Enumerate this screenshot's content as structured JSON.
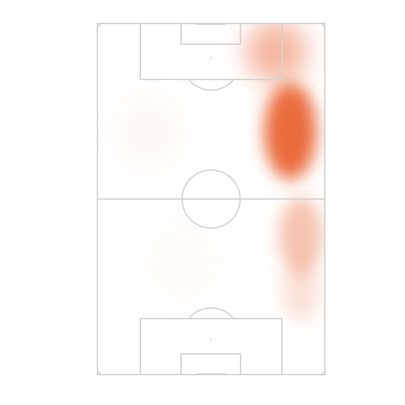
{
  "pitch": {
    "line_color": "#d3d3d3",
    "background": "#ffffff",
    "orientation": "vertical"
  },
  "heatmap": {
    "color": "#e8602c",
    "zones": [
      {
        "name": "right-flank-upper-hotspot",
        "intensity": 0.92
      },
      {
        "name": "right-flank-top-corner",
        "intensity": 0.45
      },
      {
        "name": "right-flank-lower-half",
        "intensity": 0.38
      },
      {
        "name": "right-flank-lower-tail",
        "intensity": 0.18
      },
      {
        "name": "left-midfield-faint",
        "intensity": 0.04
      },
      {
        "name": "lower-midfield-faint",
        "intensity": 0.03
      }
    ]
  }
}
